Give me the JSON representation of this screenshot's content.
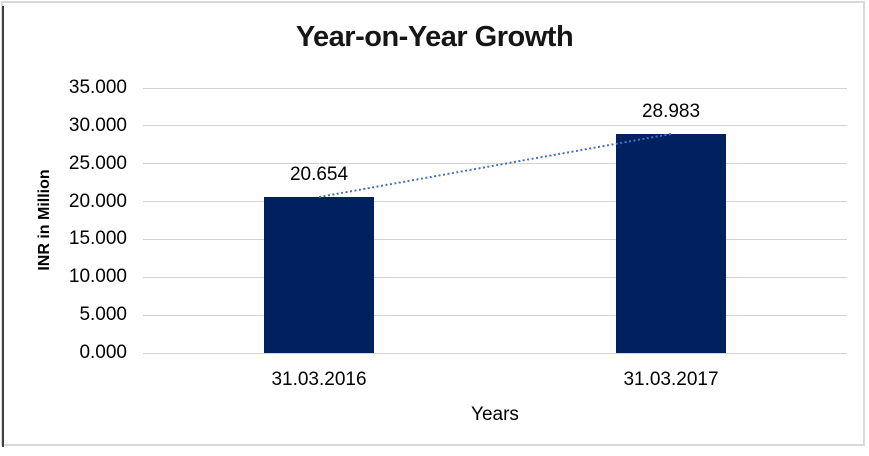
{
  "chart_data": {
    "type": "bar",
    "title": "Year-on-Year Growth",
    "xlabel": "Years",
    "ylabel": "INR in Million",
    "categories": [
      "31.03.2016",
      "31.03.2017"
    ],
    "values": [
      20.654,
      28.983
    ],
    "value_labels": [
      "20.654",
      "28.983"
    ],
    "ylim": [
      0,
      35
    ],
    "yticks": [
      0,
      5,
      10,
      15,
      20,
      25,
      30,
      35
    ],
    "ytick_labels": [
      "0.000",
      "5.000",
      "10.000",
      "15.000",
      "20.000",
      "25.000",
      "30.000",
      "35.000"
    ],
    "grid": "horizontal-only",
    "legend": "none",
    "trendline": {
      "type": "linear",
      "style": "dotted",
      "color": "#4472C4"
    },
    "colors": {
      "bar": "#002060",
      "gridline": "#D2D2D2",
      "text": "#000000",
      "title": "#161616",
      "frame_border": "#D9D9D9",
      "page_edge": "#404040"
    }
  }
}
